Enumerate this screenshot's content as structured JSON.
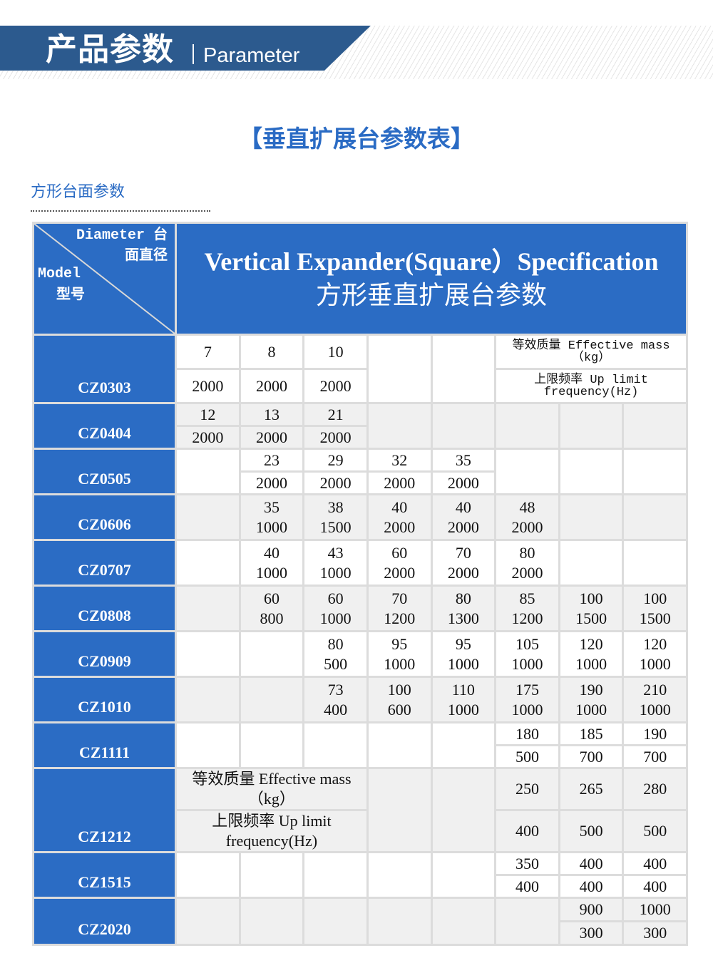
{
  "banner": {
    "title_zh": "产品参数",
    "title_en": "Parameter"
  },
  "main_title": "【垂直扩展台参数表】",
  "section_title": "方形台面参数",
  "colors": {
    "banner": "#2c5a8e",
    "accent": "#2a6bc4",
    "table_header": "#2b6cc4",
    "row_alt": "#f0f0f0",
    "grid": "#dcdcdc"
  },
  "table": {
    "corner": {
      "diameter_en": "Diameter 台",
      "diameter_zh": "面直径",
      "model_en": "Model",
      "model_zh": "型号"
    },
    "title_en": "Vertical Expander(Square）Specification",
    "title_zh": "方形垂直扩展台参数",
    "rows": [
      {
        "model": "CZ0303",
        "split": true,
        "cells": [
          [
            "7",
            "2000"
          ],
          [
            "8",
            "2000"
          ],
          [
            "10",
            "2000"
          ],
          null,
          null,
          {
            "span": 3,
            "top": "等效质量 Effective mass（kg）",
            "bottom": "上限频率 Up limit frequency(Hz)"
          }
        ]
      },
      {
        "model": "CZ0404",
        "split": true,
        "cells": [
          [
            "12",
            "2000"
          ],
          [
            "13",
            "2000"
          ],
          [
            "21",
            "2000"
          ],
          null,
          null,
          null,
          null,
          null
        ]
      },
      {
        "model": "CZ0505",
        "split": true,
        "cells": [
          null,
          [
            "23",
            "2000"
          ],
          [
            "29",
            "2000"
          ],
          [
            "32",
            "2000"
          ],
          [
            "35",
            "2000"
          ],
          null,
          null,
          null
        ]
      },
      {
        "model": "CZ0606",
        "split": false,
        "cells": [
          null,
          [
            "35",
            "1000"
          ],
          [
            "38",
            "1500"
          ],
          [
            "40",
            "2000"
          ],
          [
            "40",
            "2000"
          ],
          [
            "48",
            "2000"
          ],
          null,
          null
        ]
      },
      {
        "model": "CZ0707",
        "split": false,
        "cells": [
          null,
          [
            "40",
            "1000"
          ],
          [
            "43",
            "1000"
          ],
          [
            "60",
            "2000"
          ],
          [
            "70",
            "2000"
          ],
          [
            "80",
            "2000"
          ],
          null,
          null
        ]
      },
      {
        "model": "CZ0808",
        "split": false,
        "cells": [
          null,
          [
            "60",
            "800"
          ],
          [
            "60",
            "1000"
          ],
          [
            "70",
            "1200"
          ],
          [
            "80",
            "1300"
          ],
          [
            "85",
            "1200"
          ],
          [
            "100",
            "1500"
          ],
          [
            "100",
            "1500"
          ]
        ]
      },
      {
        "model": "CZ0909",
        "split": false,
        "cells": [
          null,
          null,
          [
            "80",
            "500"
          ],
          [
            "95",
            "1000"
          ],
          [
            "95",
            "1000"
          ],
          [
            "105",
            "1000"
          ],
          [
            "120",
            "1000"
          ],
          [
            "120",
            "1000"
          ]
        ]
      },
      {
        "model": "CZ1010",
        "split": false,
        "cells": [
          null,
          null,
          [
            "73",
            "400"
          ],
          [
            "100",
            "600"
          ],
          [
            "110",
            "1000"
          ],
          [
            "175",
            "1000"
          ],
          [
            "190",
            "1000"
          ],
          [
            "210",
            "1000"
          ]
        ]
      },
      {
        "model": "CZ1111",
        "split": true,
        "cells": [
          null,
          null,
          null,
          null,
          null,
          [
            "180",
            "500"
          ],
          [
            "185",
            "700"
          ],
          [
            "190",
            "700"
          ]
        ]
      },
      {
        "model": "CZ1212",
        "split": true,
        "cells": [
          {
            "span": 3,
            "top": "等效质量 Effective mass（kg）",
            "bottom": "上限频率 Up limit frequency(Hz)"
          },
          null,
          null,
          [
            "250",
            "400"
          ],
          [
            "265",
            "500"
          ],
          [
            "280",
            "500"
          ]
        ]
      },
      {
        "model": "CZ1515",
        "split": true,
        "cells": [
          null,
          null,
          null,
          null,
          null,
          [
            "350",
            "400"
          ],
          [
            "400",
            "400"
          ],
          [
            "400",
            "400"
          ]
        ]
      },
      {
        "model": "CZ2020",
        "split": true,
        "cells": [
          null,
          null,
          null,
          null,
          null,
          null,
          [
            "900",
            "300"
          ],
          [
            "1000",
            "300"
          ]
        ]
      }
    ]
  }
}
